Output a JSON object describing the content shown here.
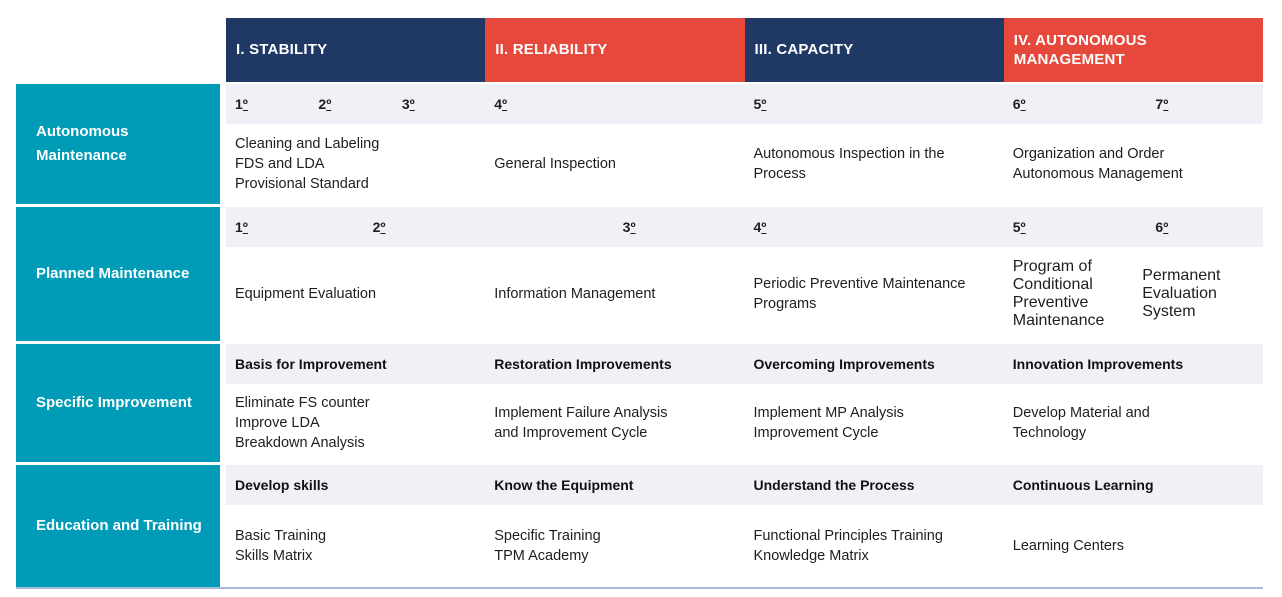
{
  "ordinal": "º",
  "colors": {
    "navy": "#1F3864",
    "red": "#E6493C",
    "teal": "#009BB7",
    "subheader_band": "#F0F1F6",
    "bottom_line": "#A3BBD6"
  },
  "header": {
    "columns": [
      {
        "label": "I. STABILITY"
      },
      {
        "label": "II. RELIABILITY"
      },
      {
        "label": "III. CAPACITY"
      },
      {
        "label": "IV. AUTONOMOUS MANAGEMENT"
      }
    ]
  },
  "rows": [
    {
      "label": "Autonomous Maintenance",
      "steps": {
        "c1": [
          "1",
          "2",
          "3"
        ],
        "c2": [
          "4"
        ],
        "c3": [
          "5"
        ],
        "c4": [
          "6",
          "7"
        ]
      },
      "cells": {
        "c1": "Cleaning and Labeling\nFDS and LDA\nProvisional Standard",
        "c2": "General Inspection",
        "c3": "Autonomous Inspection in the\nProcess",
        "c4": "Organization and Order\nAutonomous Management"
      }
    },
    {
      "label": "Planned Maintenance",
      "steps": {
        "c1": [
          "1",
          "2"
        ],
        "c2": [
          "3"
        ],
        "c3": [
          "4"
        ],
        "c4": [
          "5",
          "6"
        ]
      },
      "cells": {
        "c1": "Equipment Evaluation",
        "c2": "Information Management",
        "c3": "Periodic Preventive Maintenance\nPrograms",
        "c4a": "Program of\nConditional\nPreventive\nMaintenance",
        "c4b": "Permanent\nEvaluation\nSystem"
      }
    },
    {
      "label": "Specific Improvement",
      "titles": {
        "c1": "Basis for Improvement",
        "c2": "Restoration Improvements",
        "c3": "Overcoming Improvements",
        "c4": "Innovation Improvements"
      },
      "cells": {
        "c1": "Eliminate FS counter\nImprove LDA\nBreakdown Analysis",
        "c2": "Implement Failure Analysis\nand Improvement Cycle",
        "c3": "Implement MP Analysis\nImprovement Cycle",
        "c4": "Develop Material and\nTechnology"
      }
    },
    {
      "label": "Education and Training",
      "titles": {
        "c1": "Develop skills",
        "c2": "Know the Equipment",
        "c3": "Understand the Process",
        "c4": "Continuous Learning"
      },
      "cells": {
        "c1": "Basic Training\nSkills Matrix",
        "c2": "Specific Training\nTPM Academy",
        "c3": "Functional Principles Training\nKnowledge Matrix",
        "c4": "Learning Centers"
      }
    }
  ]
}
